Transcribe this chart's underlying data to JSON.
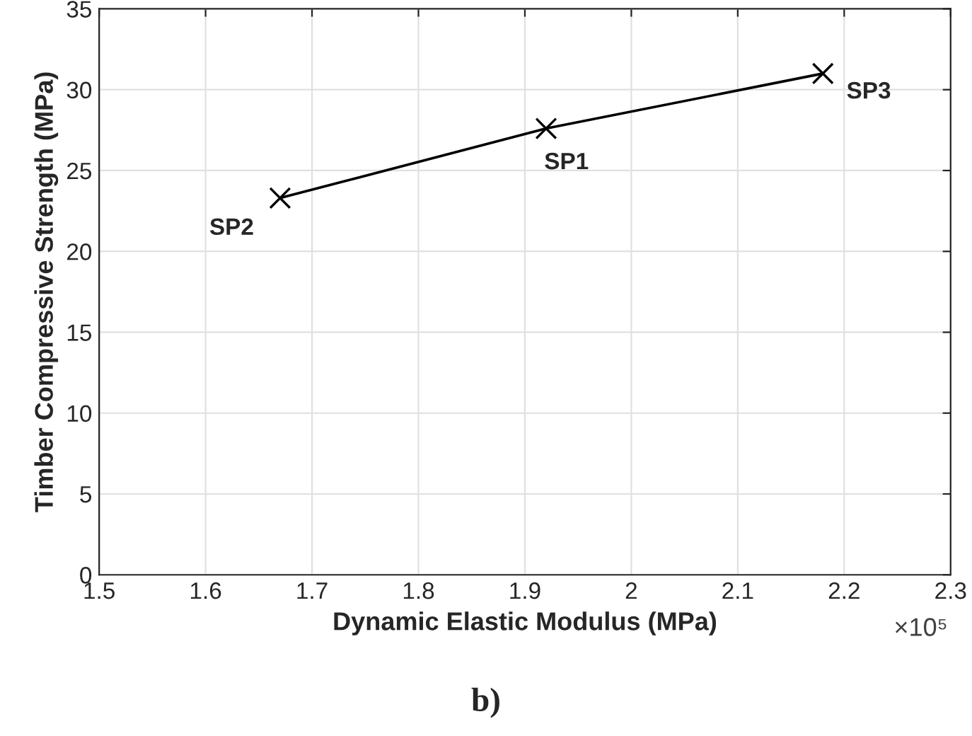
{
  "chart_data": {
    "type": "line",
    "xlabel": "Dynamic Elastic Modulus (MPa)",
    "ylabel": "Timber Compressive Strength (MPa)",
    "x": [
      1.67,
      1.92,
      2.18
    ],
    "values": [
      23.3,
      27.6,
      31.0
    ],
    "color": "#000000",
    "marker": "cross",
    "line_style": "solid",
    "grid": true,
    "xlim": [
      1.5,
      2.3
    ],
    "xticks": [
      1.5,
      1.6,
      1.7,
      1.8,
      1.9,
      2,
      2.1,
      2.2,
      2.3
    ],
    "ylim": [
      0,
      35
    ],
    "yticks": [
      0,
      5,
      10,
      15,
      20,
      25,
      30,
      35
    ],
    "annotations": [
      {
        "text": "SP2",
        "x": 1.67,
        "y": 23.3
      },
      {
        "text": "SP1",
        "x": 1.92,
        "y": 27.6
      },
      {
        "text": "SP3",
        "x": 2.18,
        "y": 31.0
      },
      "×10⁵",
      "b)"
    ]
  }
}
